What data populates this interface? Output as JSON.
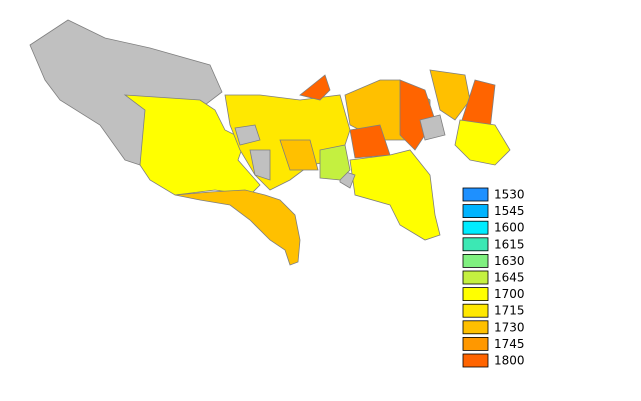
{
  "legend": [
    {
      "label": "1530",
      "color": "#1e90ff"
    },
    {
      "label": "1545",
      "color": "#00b4ff"
    },
    {
      "label": "1600",
      "color": "#00ecff"
    },
    {
      "label": "1615",
      "color": "#3ce8b4"
    },
    {
      "label": "1630",
      "color": "#80f080"
    },
    {
      "label": "1645",
      "color": "#c4f040"
    },
    {
      "label": "1700",
      "color": "#ffff00"
    },
    {
      "label": "1715",
      "color": "#ffe800"
    },
    {
      "label": "1730",
      "color": "#ffc000"
    },
    {
      "label": "1745",
      "color": "#ff9800"
    },
    {
      "label": "1800",
      "color": "#ff6400"
    }
  ]
}
